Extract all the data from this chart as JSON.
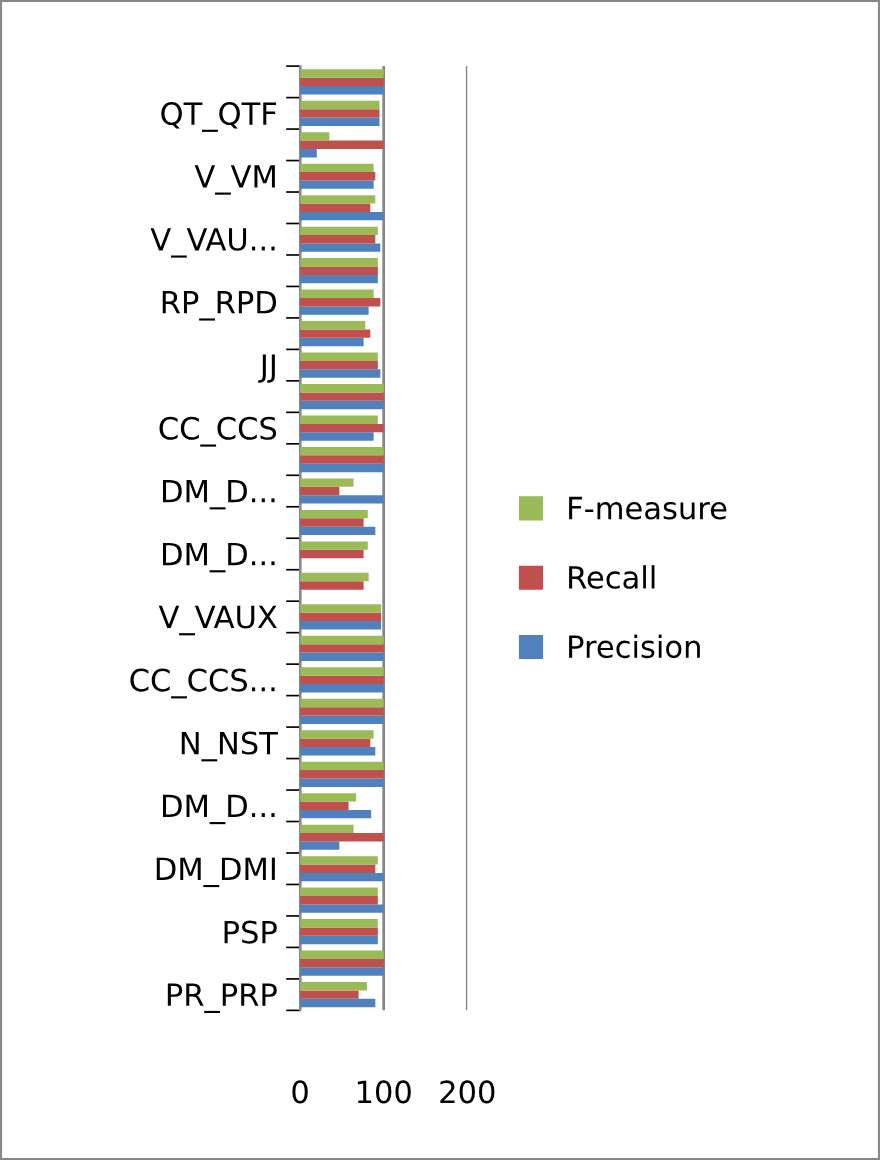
{
  "chart_data": {
    "type": "bar",
    "orientation": "horizontal",
    "categories": [
      null,
      "QT_QTF",
      null,
      "V_VM",
      null,
      "V_VAU...",
      null,
      "RP_RPD",
      null,
      "JJ",
      null,
      "CC_CCS",
      null,
      "DM_D...",
      null,
      "DM_D...",
      null,
      "V_VAUX",
      null,
      "CC_CCS...",
      null,
      "N_NST",
      null,
      "DM_D...",
      null,
      "DM_DMI",
      null,
      "PSP",
      null,
      "PR_PRP"
    ],
    "series": [
      {
        "name": "Precision",
        "color": "#4f81bd",
        "values": [
          100,
          95,
          20,
          88,
          100,
          96,
          93,
          82,
          76,
          96,
          100,
          88,
          100,
          100,
          90,
          null,
          null,
          97,
          100,
          100,
          100,
          90,
          100,
          85,
          47,
          100,
          100,
          93,
          100,
          90
        ]
      },
      {
        "name": "Recall",
        "color": "#c0504d",
        "values": [
          100,
          95,
          100,
          90,
          84,
          90,
          93,
          96,
          84,
          93,
          100,
          100,
          100,
          47,
          76,
          76,
          76,
          97,
          100,
          100,
          100,
          84,
          100,
          58,
          100,
          90,
          93,
          93,
          100,
          70
        ]
      },
      {
        "name": "F-measure",
        "color": "#9bbb59",
        "values": [
          100,
          95,
          35,
          88,
          90,
          93,
          93,
          88,
          78,
          93,
          100,
          93,
          100,
          64,
          81,
          81,
          82,
          97,
          100,
          100,
          100,
          88,
          100,
          67,
          64,
          93,
          93,
          93,
          100,
          80
        ]
      }
    ],
    "xlim": [
      0,
      200
    ],
    "xticks": [
      0,
      100,
      200
    ],
    "grid": "x",
    "legend": "right"
  }
}
